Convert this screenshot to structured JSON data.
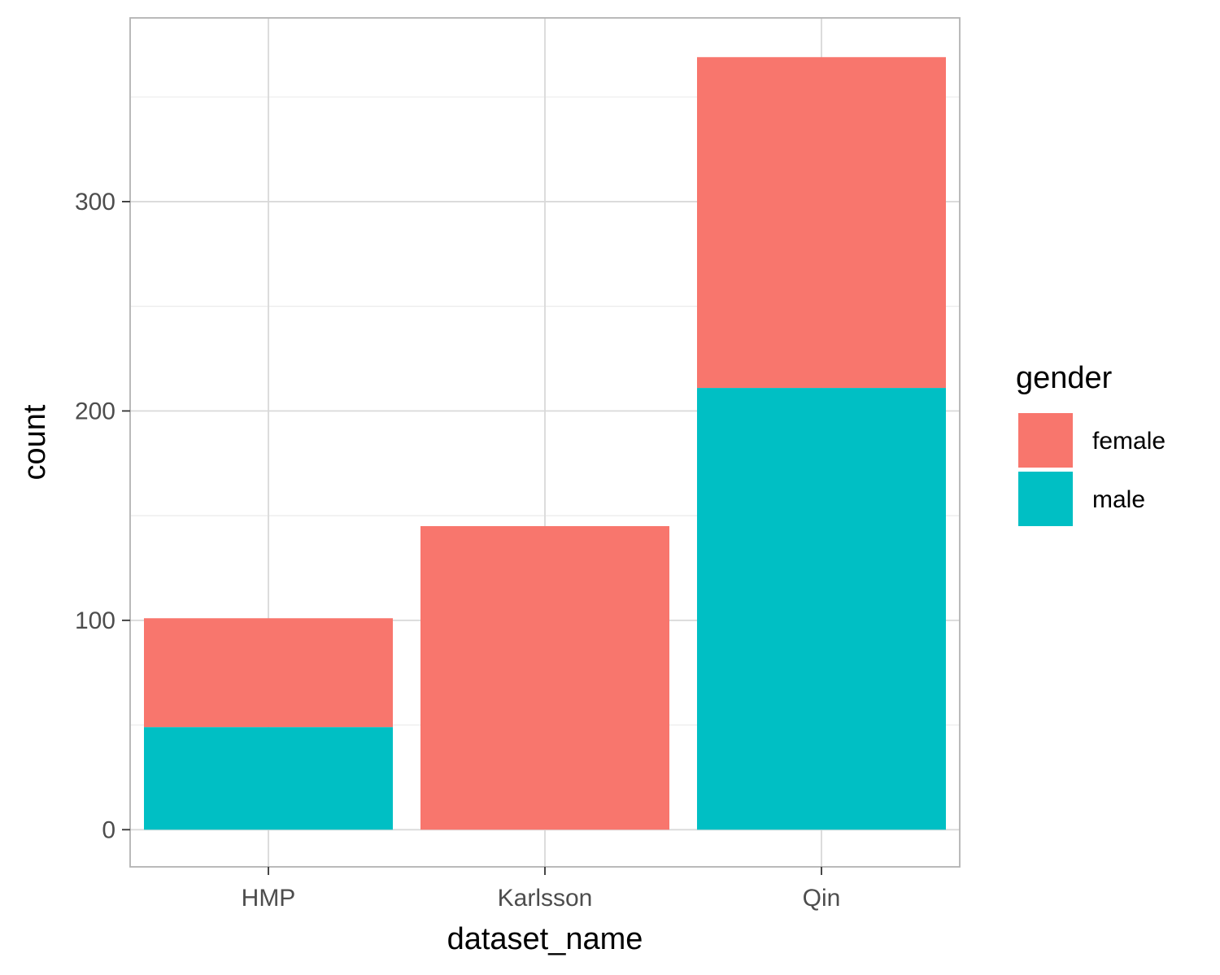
{
  "chart_data": {
    "type": "bar",
    "stacked": true,
    "categories": [
      "HMP",
      "Karlsson",
      "Qin"
    ],
    "series": [
      {
        "name": "female",
        "color": "#F8766D",
        "values": [
          52,
          145,
          158
        ]
      },
      {
        "name": "male",
        "color": "#00BFC4",
        "values": [
          49,
          0,
          211
        ]
      }
    ],
    "stack_order_bottom_to_top": [
      "male",
      "female"
    ],
    "xlabel": "dataset_name",
    "ylabel": "count",
    "ylim": [
      -17.75,
      387.75
    ],
    "yticks": [
      0,
      100,
      200,
      300
    ],
    "grid": true,
    "legend": {
      "title": "gender",
      "position": "right"
    },
    "theme": {
      "panel_border": "#b3b3b3",
      "grid_major": "#d9d9d9",
      "grid_minor": "#ebebeb"
    }
  }
}
